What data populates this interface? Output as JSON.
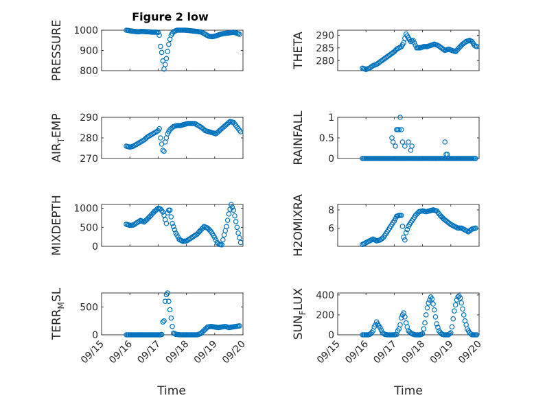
{
  "figure": {
    "title": "Figure 2 low",
    "xlabel": "Time",
    "xticklabels": [
      "09/15",
      "09/16",
      "09/17",
      "09/18",
      "09/19",
      "09/20"
    ],
    "marker_color": "#0072BD"
  },
  "chart_data": [
    {
      "type": "scatter",
      "ylabel": "PRESSURE",
      "title": "Figure 2 low",
      "ylim": [
        800,
        1000
      ],
      "yticks": [
        800,
        900,
        1000
      ],
      "grid": true,
      "series": [
        {
          "x": [
            "09/15 21:00",
            "09/15 23:00",
            "09/16 01:00",
            "09/16 04:00",
            "09/16 07:00",
            "09/16 10:00",
            "09/16 13:00",
            "09/16 16:00",
            "09/16 19:00",
            "09/16 22:00",
            "09/17 00:00",
            "09/17 01:00",
            "09/17 02:00",
            "09/17 03:00",
            "09/17 04:00",
            "09/17 05:00",
            "09/17 06:00",
            "09/17 07:00",
            "09/17 08:00",
            "09/17 09:00",
            "09/17 10:00",
            "09/17 11:00",
            "09/17 13:00",
            "09/17 16:00",
            "09/17 19:00",
            "09/17 22:00",
            "09/18 01:00",
            "09/18 04:00",
            "09/18 07:00",
            "09/18 10:00",
            "09/18 13:00",
            "09/18 16:00",
            "09/18 19:00",
            "09/18 22:00",
            "09/19 01:00",
            "09/19 04:00",
            "09/19 07:00",
            "09/19 10:00",
            "09/19 13:00",
            "09/19 16:00",
            "09/19 19:00",
            "09/19 21:00"
          ],
          "y": [
            1000,
            998,
            996,
            994,
            992,
            994,
            993,
            992,
            990,
            990,
            989,
            975,
            920,
            890,
            848,
            808,
            830,
            860,
            895,
            930,
            955,
            975,
            992,
            1000,
            1000,
            1000,
            999,
            997,
            995,
            993,
            990,
            980,
            970,
            968,
            972,
            978,
            983,
            985,
            987,
            990,
            985,
            980
          ]
        }
      ]
    },
    {
      "type": "scatter",
      "ylabel": "THETA",
      "ylim": [
        276,
        292
      ],
      "yticks": [
        280,
        285,
        290
      ],
      "grid": true,
      "series": [
        {
          "x": [
            "09/15 21:00",
            "09/16 00:00",
            "09/16 03:00",
            "09/16 06:00",
            "09/16 09:00",
            "09/16 12:00",
            "09/16 15:00",
            "09/16 18:00",
            "09/16 21:00",
            "09/17 00:00",
            "09/17 02:00",
            "09/17 04:00",
            "09/17 06:00",
            "09/17 08:00",
            "09/17 10:00",
            "09/17 12:00",
            "09/17 14:00",
            "09/17 16:00",
            "09/17 19:00",
            "09/17 22:00",
            "09/18 01:00",
            "09/18 04:00",
            "09/18 07:00",
            "09/18 10:00",
            "09/18 13:00",
            "09/18 16:00",
            "09/18 19:00",
            "09/18 22:00",
            "09/19 01:00",
            "09/19 04:00",
            "09/19 07:00",
            "09/19 10:00",
            "09/19 13:00",
            "09/19 16:00",
            "09/19 18:00",
            "09/19 20:00",
            "09/19 22:00"
          ],
          "y": [
            277,
            276.5,
            277,
            278,
            278.5,
            279.5,
            280.5,
            281.5,
            282.5,
            283.5,
            284.5,
            285,
            285.5,
            287,
            290.5,
            289,
            287.5,
            288,
            285,
            285,
            285.5,
            285.5,
            286,
            286.5,
            286,
            285,
            284,
            284.5,
            284,
            283.5,
            285,
            286.5,
            287.5,
            288,
            287.5,
            286,
            285.5
          ]
        }
      ]
    },
    {
      "type": "scatter",
      "ylabel": "AIR_TEMP",
      "ylim": [
        270,
        290
      ],
      "yticks": [
        270,
        280,
        290
      ],
      "grid": true,
      "series": [
        {
          "x": [
            "09/15 21:00",
            "09/16 00:00",
            "09/16 03:00",
            "09/16 06:00",
            "09/16 09:00",
            "09/16 12:00",
            "09/16 15:00",
            "09/16 18:00",
            "09/16 21:00",
            "09/17 00:00",
            "09/17 01:00",
            "09/17 02:00",
            "09/17 03:00",
            "09/17 04:00",
            "09/17 05:00",
            "09/17 06:00",
            "09/17 08:00",
            "09/17 10:00",
            "09/17 13:00",
            "09/17 16:00",
            "09/17 19:00",
            "09/17 22:00",
            "09/18 01:00",
            "09/18 04:00",
            "09/18 07:00",
            "09/18 10:00",
            "09/18 13:00",
            "09/18 16:00",
            "09/18 19:00",
            "09/18 22:00",
            "09/19 01:00",
            "09/19 04:00",
            "09/19 07:00",
            "09/19 10:00",
            "09/19 13:00",
            "09/19 16:00",
            "09/19 18:00",
            "09/19 20:00",
            "09/19 22:00"
          ],
          "y": [
            276,
            275.5,
            276,
            277,
            278,
            279,
            280.5,
            281.5,
            282.5,
            283.5,
            284.5,
            280,
            277,
            274,
            273.5,
            278,
            282,
            284,
            285.5,
            286,
            286,
            286.5,
            287,
            287,
            287,
            286,
            285,
            283.5,
            283,
            282.5,
            282,
            283.5,
            285,
            286.5,
            288,
            287.5,
            286,
            284.5,
            283
          ]
        }
      ]
    },
    {
      "type": "scatter",
      "ylabel": "RAINFALL",
      "ylim": [
        0,
        1
      ],
      "yticks": [
        0,
        0.5,
        1
      ],
      "grid": true,
      "series": [
        {
          "x": [
            "09/15 21:00",
            "09/16 00:00",
            "09/16 03:00",
            "09/16 06:00",
            "09/16 09:00",
            "09/16 12:00",
            "09/16 15:00",
            "09/16 18:00",
            "09/16 21:00",
            "09/17 00:00",
            "09/16 22:00",
            "09/16 23:00",
            "09/17 01:00",
            "09/17 02:00",
            "09/17 03:00",
            "09/17 04:00",
            "09/17 05:00",
            "09/17 06:00",
            "09/17 07:00",
            "09/17 08:00",
            "09/17 09:00",
            "09/17 10:00",
            "09/17 11:00",
            "09/17 12:00",
            "09/17 14:00",
            "09/17 15:00",
            "09/17 16:00",
            "09/17 18:00",
            "09/17 21:00",
            "09/18 00:00",
            "09/18 03:00",
            "09/18 06:00",
            "09/18 09:00",
            "09/18 12:00",
            "09/18 15:00",
            "09/18 18:00",
            "09/18 19:00",
            "09/18 20:00",
            "09/18 21:00",
            "09/18 22:00",
            "09/19 00:00",
            "09/19 03:00",
            "09/19 06:00",
            "09/19 09:00",
            "09/19 12:00",
            "09/19 15:00",
            "09/19 18:00",
            "09/19 21:00"
          ],
          "y": [
            0,
            0,
            0,
            0,
            0,
            0,
            0,
            0,
            0,
            0,
            0.5,
            0.4,
            0.3,
            0.7,
            0.7,
            0.7,
            1.0,
            0.7,
            0.4,
            0,
            0.3,
            0,
            0,
            0.4,
            0.2,
            0.3,
            0,
            0,
            0,
            0,
            0,
            0,
            0,
            0,
            0,
            0,
            0.4,
            0.1,
            0.1,
            0,
            0,
            0,
            0,
            0,
            0,
            0,
            0,
            0
          ]
        }
      ]
    },
    {
      "type": "scatter",
      "ylabel": "MIXDEPTH",
      "ylim": [
        0,
        1100
      ],
      "yticks": [
        0,
        500,
        1000
      ],
      "grid": true,
      "series": [
        {
          "x": [
            "09/15 21:00",
            "09/16 00:00",
            "09/16 03:00",
            "09/16 06:00",
            "09/16 09:00",
            "09/16 12:00",
            "09/16 15:00",
            "09/16 18:00",
            "09/16 21:00",
            "09/17 00:00",
            "09/17 02:00",
            "09/17 04:00",
            "09/17 05:00",
            "09/17 06:00",
            "09/17 07:00",
            "09/17 08:00",
            "09/17 09:00",
            "09/17 10:00",
            "09/17 12:00",
            "09/17 15:00",
            "09/17 18:00",
            "09/17 21:00",
            "09/18 00:00",
            "09/18 03:00",
            "09/18 06:00",
            "09/18 09:00",
            "09/18 12:00",
            "09/18 15:00",
            "09/18 18:00",
            "09/18 21:00",
            "09/19 00:00",
            "09/19 02:00",
            "09/19 04:00",
            "09/19 06:00",
            "09/19 08:00",
            "09/19 10:00",
            "09/19 12:00",
            "09/19 14:00",
            "09/19 16:00",
            "09/19 18:00",
            "09/19 20:00",
            "09/19 22:00"
          ],
          "y": [
            580,
            550,
            560,
            620,
            680,
            640,
            720,
            820,
            920,
            1000,
            980,
            900,
            820,
            700,
            600,
            880,
            950,
            950,
            600,
            350,
            180,
            130,
            140,
            200,
            260,
            320,
            420,
            520,
            480,
            380,
            230,
            100,
            50,
            40,
            300,
            520,
            850,
            1100,
            950,
            650,
            350,
            100
          ]
        }
      ]
    },
    {
      "type": "scatter",
      "ylabel": "H2OMIXRA",
      "ylim": [
        4,
        8.6
      ],
      "yticks": [
        6,
        8
      ],
      "grid": true,
      "series": [
        {
          "x": [
            "09/15 21:00",
            "09/16 00:00",
            "09/16 03:00",
            "09/16 06:00",
            "09/16 09:00",
            "09/16 12:00",
            "09/16 15:00",
            "09/16 18:00",
            "09/16 21:00",
            "09/17 00:00",
            "09/17 02:00",
            "09/17 04:00",
            "09/17 06:00",
            "09/17 08:00",
            "09/17 09:00",
            "09/17 10:00",
            "09/17 12:00",
            "09/17 15:00",
            "09/17 18:00",
            "09/17 21:00",
            "09/18 00:00",
            "09/18 03:00",
            "09/18 06:00",
            "09/18 09:00",
            "09/18 12:00",
            "09/18 15:00",
            "09/18 18:00",
            "09/18 21:00",
            "09/19 00:00",
            "09/19 03:00",
            "09/19 06:00",
            "09/19 09:00",
            "09/19 12:00",
            "09/19 15:00",
            "09/19 18:00",
            "09/19 21:00"
          ],
          "y": [
            4.2,
            4.4,
            4.6,
            4.8,
            4.6,
            4.7,
            5.0,
            5.6,
            6.2,
            6.8,
            7.3,
            7.4,
            7.4,
            5.0,
            4.7,
            5.5,
            6.2,
            6.8,
            7.4,
            7.8,
            7.9,
            7.8,
            7.9,
            8.0,
            7.9,
            7.4,
            7.0,
            6.7,
            6.4,
            6.2,
            6.0,
            6.0,
            5.8,
            5.6,
            5.9,
            6.0
          ]
        }
      ]
    },
    {
      "type": "scatter",
      "ylabel": "TERR_MSL",
      "ylim": [
        0,
        750
      ],
      "yticks": [
        0,
        500
      ],
      "grid": true,
      "series": [
        {
          "x": [
            "09/15 21:00",
            "09/16 00:00",
            "09/16 03:00",
            "09/16 06:00",
            "09/16 09:00",
            "09/16 12:00",
            "09/16 15:00",
            "09/16 18:00",
            "09/16 21:00",
            "09/17 00:00",
            "09/17 01:00",
            "09/17 02:00",
            "09/17 03:00",
            "09/17 04:00",
            "09/17 05:00",
            "09/17 06:00",
            "09/17 07:00",
            "09/17 08:00",
            "09/17 09:00",
            "09/17 10:00",
            "09/17 11:00",
            "09/17 12:00",
            "09/17 13:00",
            "09/17 15:00",
            "09/17 18:00",
            "09/17 21:00",
            "09/18 00:00",
            "09/18 03:00",
            "09/18 06:00",
            "09/18 09:00",
            "09/18 12:00",
            "09/18 15:00",
            "09/18 18:00",
            "09/18 21:00",
            "09/19 00:00",
            "09/19 03:00",
            "09/19 06:00",
            "09/19 09:00",
            "09/19 12:00",
            "09/19 15:00",
            "09/19 18:00",
            "09/19 21:00"
          ],
          "y": [
            0,
            0,
            0,
            0,
            0,
            0,
            0,
            0,
            0,
            0,
            0,
            0,
            5,
            230,
            250,
            600,
            720,
            750,
            600,
            450,
            300,
            150,
            30,
            10,
            0,
            0,
            0,
            0,
            0,
            0,
            20,
            80,
            140,
            150,
            140,
            130,
            140,
            150,
            130,
            140,
            150,
            160
          ]
        }
      ]
    },
    {
      "type": "scatter",
      "ylabel": "SUN_FLUX",
      "ylim": [
        0,
        420
      ],
      "yticks": [
        0,
        200,
        400
      ],
      "grid": true,
      "series": [
        {
          "x": [
            "09/15 21:00",
            "09/16 00:00",
            "09/16 02:00",
            "09/16 04:00",
            "09/16 06:00",
            "09/16 07:00",
            "09/16 08:00",
            "09/16 09:00",
            "09/16 10:00",
            "09/16 12:00",
            "09/16 14:00",
            "09/16 16:00",
            "09/16 18:00",
            "09/16 21:00",
            "09/17 00:00",
            "09/17 02:00",
            "09/17 03:00",
            "09/17 04:00",
            "09/17 05:00",
            "09/17 06:00",
            "09/17 07:00",
            "09/17 08:00",
            "09/17 09:00",
            "09/17 10:00",
            "09/17 12:00",
            "09/17 15:00",
            "09/17 18:00",
            "09/17 20:00",
            "09/17 22:00",
            "09/18 00:00",
            "09/18 01:00",
            "09/18 02:00",
            "09/18 03:00",
            "09/18 04:00",
            "09/18 05:00",
            "09/18 06:00",
            "09/18 07:00",
            "09/18 08:00",
            "09/18 09:00",
            "09/18 10:00",
            "09/18 11:00",
            "09/18 12:00",
            "09/18 14:00",
            "09/18 16:00",
            "09/18 18:00",
            "09/18 20:00",
            "09/18 22:00",
            "09/19 00:00",
            "09/19 01:00",
            "09/19 02:00",
            "09/19 03:00",
            "09/19 04:00",
            "09/19 05:00",
            "09/19 06:00",
            "09/19 07:00",
            "09/19 08:00",
            "09/19 09:00",
            "09/19 10:00",
            "09/19 11:00",
            "09/19 12:00",
            "09/19 14:00",
            "09/19 16:00",
            "09/19 18:00",
            "09/19 20:00",
            "09/19 22:00"
          ],
          "y": [
            0,
            0,
            0,
            10,
            40,
            80,
            100,
            130,
            110,
            70,
            20,
            5,
            0,
            0,
            0,
            5,
            40,
            60,
            100,
            170,
            200,
            220,
            180,
            120,
            40,
            10,
            0,
            0,
            0,
            10,
            60,
            120,
            200,
            270,
            320,
            350,
            380,
            360,
            310,
            250,
            180,
            110,
            40,
            10,
            0,
            0,
            0,
            20,
            80,
            160,
            240,
            300,
            350,
            380,
            390,
            370,
            320,
            260,
            200,
            140,
            60,
            20,
            0,
            0,
            0
          ]
        }
      ]
    }
  ]
}
